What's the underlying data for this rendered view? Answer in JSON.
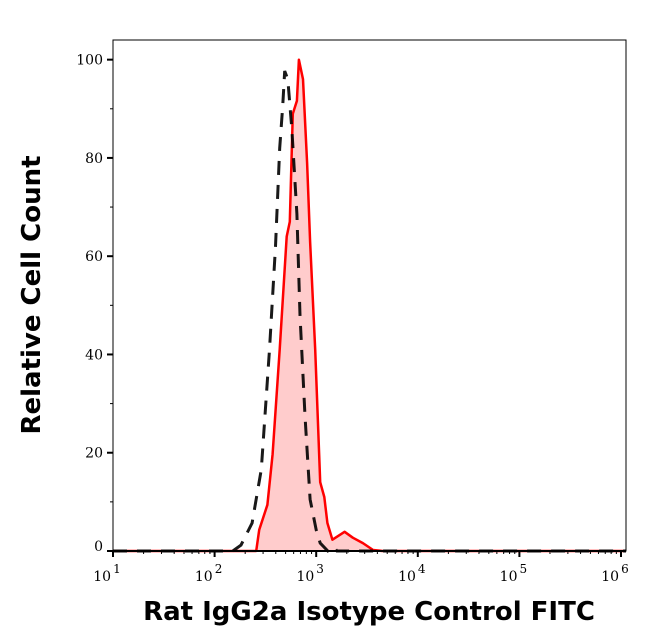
{
  "chart_data": {
    "type": "area",
    "title": "",
    "xlabel": "Rat IgG2a Isotype Control  FITC",
    "ylabel": "Relative Cell Count",
    "x_scale": "log",
    "xlim": [
      10,
      1120000
    ],
    "ylim": [
      0,
      104
    ],
    "x_ticks": [
      {
        "base": "10",
        "exp": "1"
      },
      {
        "base": "10",
        "exp": "2"
      },
      {
        "base": "10",
        "exp": "3"
      },
      {
        "base": "10",
        "exp": "4"
      },
      {
        "base": "10",
        "exp": "5"
      },
      {
        "base": "10",
        "exp": "6"
      }
    ],
    "y_ticks": [
      "0",
      "20",
      "40",
      "60",
      "80",
      "100"
    ],
    "grid": false,
    "series": [
      {
        "style": "filled",
        "color": "#ff0000",
        "fill": "#ffcccc",
        "x": [
          10,
          200,
          257,
          275,
          331,
          372,
          437,
          513,
          550,
          589,
          646,
          676,
          741,
          813,
          871,
          977,
          1096,
          1202,
          1288,
          1445,
          1905,
          2291,
          2884,
          3631,
          4500,
          1120000
        ],
        "y": [
          0,
          0,
          0,
          4.3,
          9.4,
          19.7,
          41,
          64,
          67,
          89,
          91.6,
          100,
          96,
          79,
          63,
          41,
          14,
          11,
          5.7,
          2.3,
          3.9,
          2.7,
          1.6,
          0.2,
          0,
          0
        ]
      },
      {
        "style": "dashed",
        "color": "#000000",
        "x": [
          10,
          151,
          182,
          234,
          288,
          347,
          398,
          437,
          468,
          490,
          525,
          575,
          646,
          692,
          776,
          871,
          1000,
          1096,
          1300,
          1500,
          1600,
          1120000
        ],
        "y": [
          0,
          0,
          1.2,
          5.7,
          16.6,
          41,
          62,
          82,
          90.5,
          97.7,
          96,
          86,
          68.6,
          48,
          27.5,
          10.5,
          4.3,
          1.6,
          0,
          0.8,
          0,
          0
        ]
      }
    ]
  }
}
